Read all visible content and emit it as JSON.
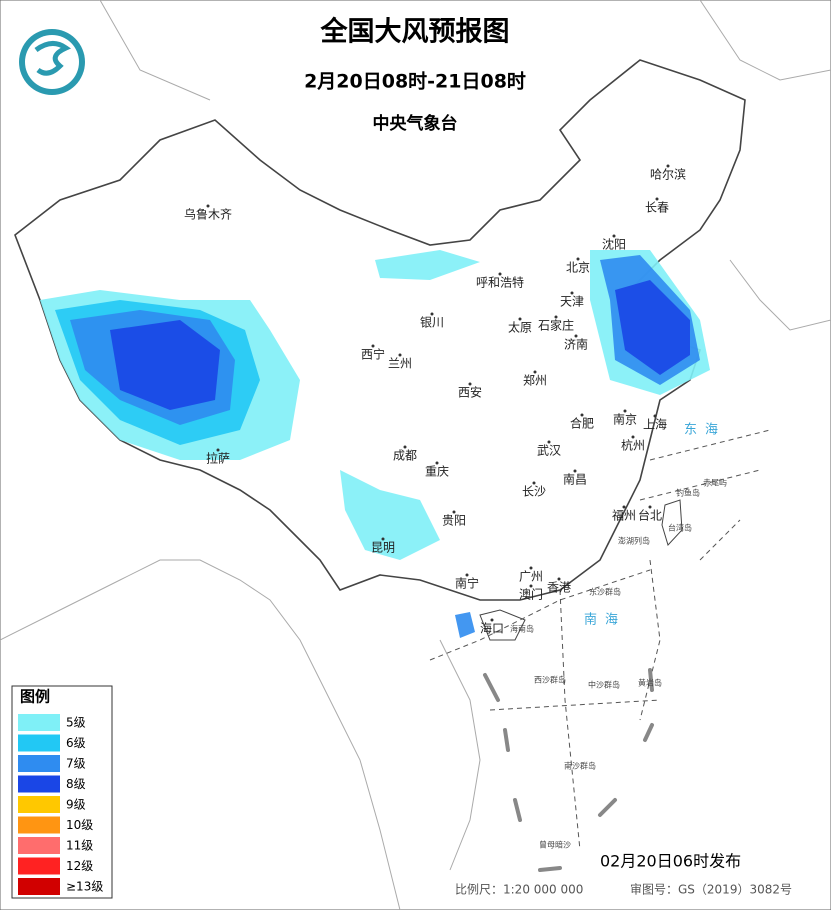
{
  "header": {
    "title": "全国大风预报图",
    "subtitle": "2月20日08时-21日08时",
    "issuer": "中央气象台"
  },
  "legend": {
    "title": "图例",
    "items": [
      {
        "label": "5级",
        "color": "#7ff0f7"
      },
      {
        "label": "6级",
        "color": "#22c8f4"
      },
      {
        "label": "7级",
        "color": "#2f8cf0"
      },
      {
        "label": "8级",
        "color": "#1a46e6"
      },
      {
        "label": "9级",
        "color": "#ffc800"
      },
      {
        "label": "10级",
        "color": "#ff9512"
      },
      {
        "label": "11级",
        "color": "#ff6d6d"
      },
      {
        "label": "12级",
        "color": "#ff2222"
      },
      {
        "label": "≥13级",
        "color": "#d10000"
      }
    ]
  },
  "cities": [
    "乌鲁木齐",
    "哈尔滨",
    "长春",
    "沈阳",
    "北京",
    "天津",
    "呼和浩特",
    "银川",
    "太原",
    "石家庄",
    "济南",
    "西宁",
    "兰州",
    "郑州",
    "西安",
    "南京",
    "合肥",
    "上海",
    "杭州",
    "成都",
    "武汉",
    "拉萨",
    "重庆",
    "南昌",
    "长沙",
    "福州",
    "台北",
    "贵阳",
    "昆明",
    "南宁",
    "广州",
    "香港",
    "澳门",
    "海口"
  ],
  "seas": [
    "东海",
    "南海"
  ],
  "islands": [
    "海南岛",
    "台湾岛",
    "钓鱼岛",
    "赤尾屿",
    "澎湖列岛",
    "东沙群岛",
    "西沙群岛",
    "中沙群岛",
    "黄岩岛",
    "南沙群岛",
    "曾母暗沙"
  ],
  "footer": {
    "issued": "02月20日06时发布",
    "scale": "比例尺：1:20 000 000",
    "approval": "审图号：GS（2019）3082号"
  }
}
